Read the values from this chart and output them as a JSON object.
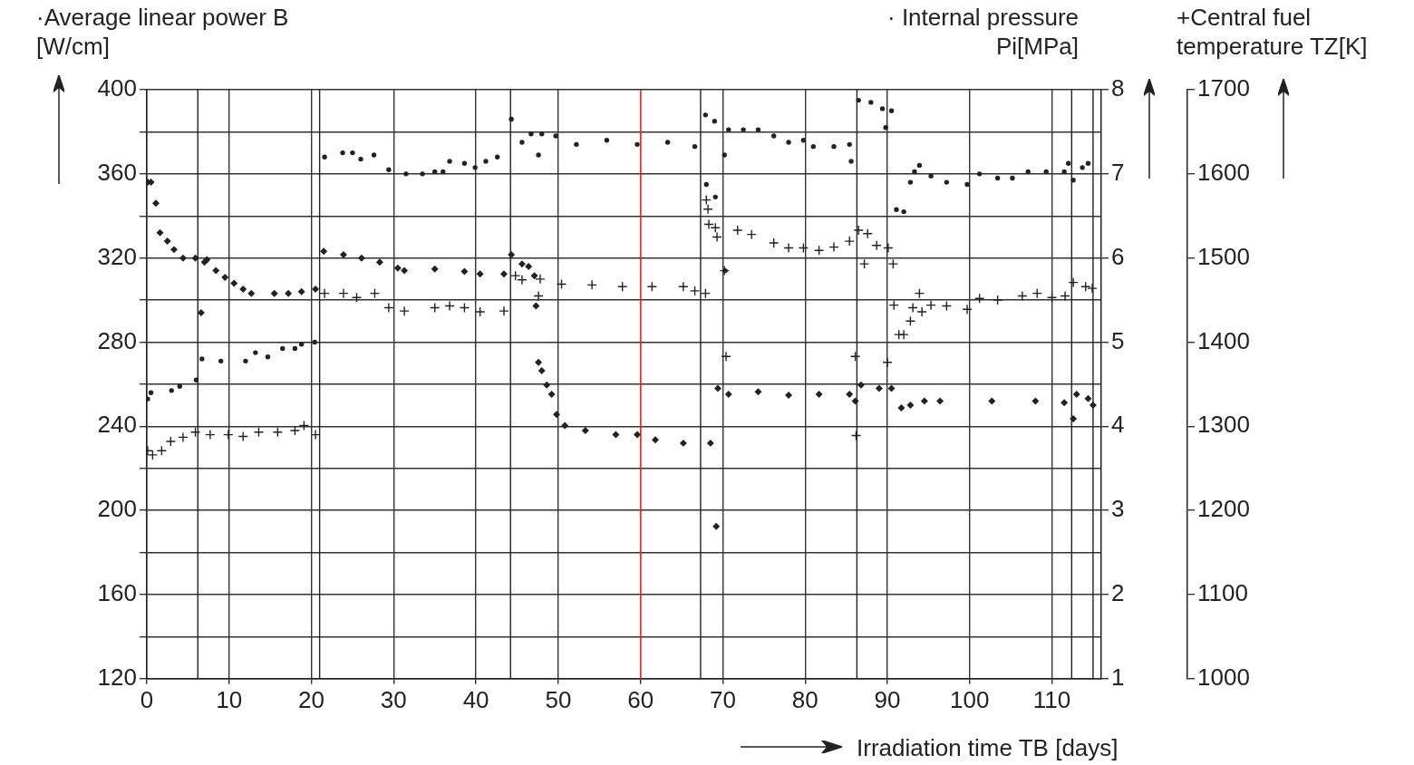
{
  "chart_data": {
    "type": "scatter",
    "xlabel": "Irradiation time TB [days]",
    "ylabel": "·Average linear power B\n[W/cm]",
    "y2label": "· Internal pressure\nPi[MPa]",
    "y3label": "+Central fuel\ntemperature TZ[K]",
    "xlim": [
      0,
      116
    ],
    "xticks": [
      0,
      10,
      20,
      30,
      40,
      50,
      60,
      70,
      80,
      90,
      100,
      110
    ],
    "ylim": [
      120,
      400
    ],
    "yticks": [
      120,
      {
        "value": 140,
        "label": null
      },
      160,
      {
        "value": 180,
        "label": null
      },
      200,
      {
        "value": 220,
        "label": null
      },
      240,
      {
        "value": 260,
        "label": null
      },
      280,
      {
        "value": 300,
        "label": null
      },
      320,
      {
        "value": 340,
        "label": null
      },
      360,
      {
        "value": 380,
        "label": null
      },
      400
    ],
    "y2lim": [
      1,
      8
    ],
    "y2ticks": [
      1,
      2,
      3,
      4,
      5,
      6,
      7,
      8
    ],
    "y3lim": [
      1000,
      1700
    ],
    "y3ticks": [
      1000,
      1100,
      1200,
      1300,
      1400,
      1500,
      1600,
      1700
    ],
    "grid": true,
    "legend": false,
    "series": [
      {
        "marker": "circle",
        "color": "#222222",
        "axis": "y",
        "x": [
          0.1,
          0.5,
          3,
          4,
          6,
          6.7,
          9,
          12,
          13.2,
          14.7,
          16.5,
          18,
          18.8,
          20.4,
          21.6,
          23.8,
          25,
          26,
          27.6,
          29.4,
          31.5,
          33.5,
          35,
          36,
          36.8,
          38.6,
          39.9,
          41.2,
          42.6,
          44.3,
          45.6,
          46.7,
          47.6,
          48,
          49.7,
          52.2,
          55.9,
          59.6,
          63.3,
          66.6,
          67.9,
          68,
          69,
          69.1,
          70.2,
          70.3,
          70.7,
          72.5,
          74.3,
          76.2,
          78,
          79.8,
          81,
          83.5,
          85.4,
          85.6,
          86.5,
          88,
          89.4,
          89.8,
          90.5,
          91.1,
          92,
          92.8,
          93.3,
          93.9,
          95.3,
          97.2,
          99.7,
          101.2,
          103.4,
          105.2,
          107.1,
          109.3,
          111.5,
          112,
          112.6,
          113.7,
          114.4
        ],
        "values": [
          253,
          256,
          257,
          259,
          262,
          272,
          271,
          271,
          275,
          273,
          277,
          277,
          279,
          280,
          368,
          370,
          370,
          367,
          369,
          362,
          360,
          360,
          361,
          361,
          366,
          365,
          363,
          366,
          368,
          386,
          375,
          379,
          369,
          379,
          378,
          374,
          376,
          374,
          375,
          373,
          388,
          355,
          385,
          349,
          369,
          314,
          381,
          381,
          381,
          378,
          375,
          376,
          373,
          373,
          374,
          366,
          395,
          394,
          391,
          382,
          390,
          343,
          342,
          356,
          361,
          364,
          359,
          356,
          355,
          360,
          358,
          358,
          361,
          361,
          361,
          365,
          357,
          363,
          365
        ]
      },
      {
        "marker": "diamond",
        "color": "#222222",
        "axis": "y2",
        "x": [
          0.1,
          0.5,
          1.1,
          1.6,
          2.5,
          3.3,
          4.4,
          5.9,
          6.6,
          7,
          7.3,
          8.4,
          9.5,
          10.6,
          11.7,
          12.7,
          15.5,
          17.2,
          18.8,
          20.5,
          21.5,
          23.9,
          26.1,
          28.3,
          30.5,
          31.3,
          35,
          38.6,
          40.5,
          43.4,
          44.3,
          45.6,
          46.4,
          47.1,
          47.3,
          47.6,
          48,
          48.6,
          49.2,
          49.8,
          50.8,
          53.3,
          57,
          59.6,
          61.8,
          65.2,
          68.5,
          69.2,
          69.4,
          70.7,
          74.3,
          78,
          81.7,
          85.4,
          86.1,
          86.8,
          89,
          90.5,
          91.7,
          92.8,
          94.5,
          96.4,
          102.7,
          108,
          111.5,
          112.6,
          113,
          114.4,
          115
        ],
        "values": [
          6.9,
          6.9,
          6.65,
          6.3,
          6.2,
          6.1,
          6.0,
          6.0,
          5.35,
          5.95,
          5.98,
          5.85,
          5.77,
          5.7,
          5.63,
          5.58,
          5.58,
          5.58,
          5.6,
          5.63,
          6.08,
          6.04,
          6.0,
          5.95,
          5.88,
          5.85,
          5.87,
          5.84,
          5.81,
          5.81,
          6.04,
          5.93,
          5.9,
          5.79,
          5.43,
          4.76,
          4.66,
          4.49,
          4.38,
          4.14,
          4.01,
          3.95,
          3.9,
          3.9,
          3.84,
          3.8,
          3.8,
          2.81,
          4.45,
          4.38,
          4.41,
          4.37,
          4.38,
          4.38,
          4.3,
          4.49,
          4.45,
          4.45,
          4.22,
          4.25,
          4.3,
          4.3,
          4.3,
          4.3,
          4.28,
          4.09,
          4.38,
          4.33,
          4.25
        ]
      },
      {
        "marker": "cross",
        "color": "#222222",
        "axis": "y3",
        "x": [
          0.1,
          0.7,
          1.8,
          2.9,
          4.4,
          5.9,
          7.7,
          9.9,
          11.7,
          13.6,
          15.9,
          18,
          19.1,
          20.5,
          21.6,
          23.9,
          25.5,
          27.7,
          29.4,
          31.3,
          35,
          36.8,
          38.6,
          40.5,
          43.4,
          44.8,
          45.6,
          47.6,
          47.8,
          50.4,
          54.1,
          57.8,
          61.4,
          65.2,
          66.6,
          67.9,
          68,
          68.2,
          68.3,
          69.1,
          69.3,
          70.2,
          70.4,
          71.8,
          73.5,
          76.2,
          78,
          79.8,
          81.7,
          83.5,
          85.4,
          86.1,
          86.2,
          86.5,
          87.2,
          87.6,
          88.7,
          90,
          90.1,
          90.7,
          90.8,
          91.4,
          92,
          92.8,
          93.1,
          93.9,
          94.2,
          95.3,
          97.2,
          99.7,
          101.2,
          103.4,
          106.4,
          108.2,
          110,
          111.6,
          112.6,
          114.1,
          114.9
        ],
        "values": [
          1271,
          1266,
          1271,
          1282,
          1287,
          1293,
          1290,
          1290,
          1288,
          1293,
          1293,
          1295,
          1301,
          1290,
          1458,
          1458,
          1453,
          1458,
          1441,
          1437,
          1441,
          1443,
          1441,
          1436,
          1437,
          1479,
          1474,
          1455,
          1475,
          1469,
          1468,
          1466,
          1466,
          1466,
          1461,
          1458,
          1569,
          1558,
          1540,
          1536,
          1525,
          1485,
          1383,
          1533,
          1528,
          1518,
          1512,
          1512,
          1509,
          1513,
          1520,
          1383,
          1289,
          1533,
          1493,
          1529,
          1515,
          1376,
          1512,
          1493,
          1444,
          1409,
          1409,
          1425,
          1441,
          1458,
          1436,
          1444,
          1443,
          1439,
          1452,
          1450,
          1455,
          1458,
          1453,
          1455,
          1471,
          1466,
          1464
        ]
      }
    ],
    "ref_lines": [
      {
        "axis": "x",
        "value": 6.2
      },
      {
        "axis": "x",
        "value": 21
      },
      {
        "axis": "x",
        "value": 44.2
      },
      {
        "axis": "x",
        "value": 67.3
      },
      {
        "axis": "x",
        "value": 86.3
      },
      {
        "axis": "x",
        "value": 112.4
      },
      {
        "axis": "x",
        "value": 115
      },
      {
        "axis": "x",
        "value": 60,
        "color": "#e03030"
      }
    ]
  }
}
